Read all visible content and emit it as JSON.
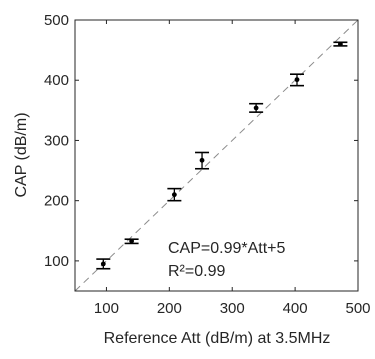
{
  "chart_data": {
    "type": "scatter",
    "xlabel": "Reference Att (dB/m) at 3.5MHz",
    "ylabel": "CAP (dB/m)",
    "xlim": [
      50,
      500
    ],
    "ylim": [
      50,
      500
    ],
    "xticks": [
      100,
      200,
      300,
      400,
      500
    ],
    "yticks": [
      100,
      200,
      300,
      400,
      500
    ],
    "xtick_labels": [
      "100",
      "200",
      "300",
      "400",
      "500"
    ],
    "ytick_labels": [
      "100",
      "200",
      "300",
      "400",
      "500"
    ],
    "grid": false,
    "legend": "none",
    "series": [
      {
        "points": [
          {
            "x": 95,
            "y": 95,
            "err_low": 87,
            "err_high": 103
          },
          {
            "x": 140,
            "y": 133,
            "err_low": 129,
            "err_high": 136
          },
          {
            "x": 208,
            "y": 210,
            "err_low": 200,
            "err_high": 220
          },
          {
            "x": 252,
            "y": 267,
            "err_low": 253,
            "err_high": 280
          },
          {
            "x": 338,
            "y": 354,
            "err_low": 347,
            "err_high": 361
          },
          {
            "x": 403,
            "y": 401,
            "err_low": 391,
            "err_high": 410
          },
          {
            "x": 472,
            "y": 460,
            "err_low": 457,
            "err_high": 463
          }
        ]
      }
    ],
    "reference_line": {
      "x": [
        50,
        500
      ],
      "y": [
        50,
        500
      ],
      "style": "dashed"
    },
    "annotations": [
      "CAP=0.99*Att+5",
      "R²=0.99"
    ]
  },
  "colors": {
    "axis": "#262626",
    "marker": "#000000",
    "reference_line": "#8c8c8c"
  }
}
